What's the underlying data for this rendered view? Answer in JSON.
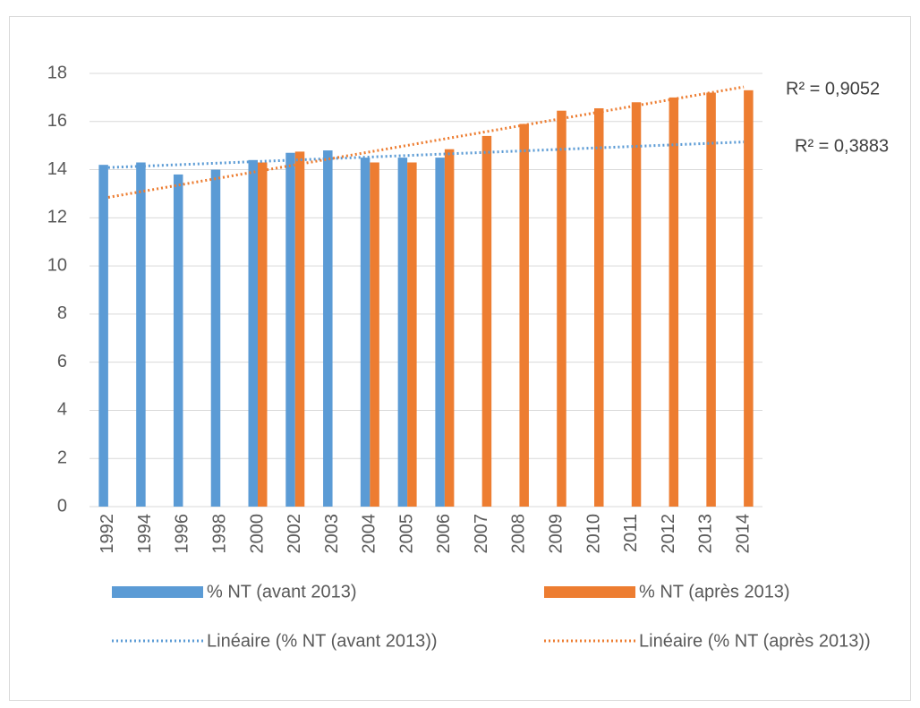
{
  "chart_data": {
    "type": "bar",
    "categories": [
      "1992",
      "1994",
      "1996",
      "1998",
      "2000",
      "2002",
      "2003",
      "2004",
      "2005",
      "2006",
      "2007",
      "2008",
      "2009",
      "2010",
      "2011",
      "2012",
      "2013",
      "2014"
    ],
    "series": [
      {
        "name": "% NT (avant 2013)",
        "color": "#5b9bd5",
        "values": [
          14.2,
          14.3,
          13.8,
          14.0,
          14.4,
          14.7,
          14.8,
          14.5,
          14.5,
          14.5,
          null,
          null,
          null,
          null,
          null,
          null,
          null,
          null
        ],
        "trendline": {
          "name": "Linéaire (% NT (avant 2013))",
          "label": "R² = 0,3883"
        }
      },
      {
        "name": "% NT (après 2013)",
        "color": "#ed7d31",
        "values": [
          null,
          null,
          null,
          null,
          14.3,
          14.75,
          null,
          14.3,
          14.3,
          14.85,
          15.4,
          15.9,
          16.45,
          16.55,
          16.8,
          17.0,
          17.2,
          17.3
        ],
        "trendline": {
          "name": "Linéaire (% NT (après 2013))",
          "label": "R² = 0,9052"
        }
      }
    ],
    "ylim": [
      0,
      18
    ],
    "yticks": [
      0,
      2,
      4,
      6,
      8,
      10,
      12,
      14,
      16,
      18
    ],
    "grid": true
  }
}
